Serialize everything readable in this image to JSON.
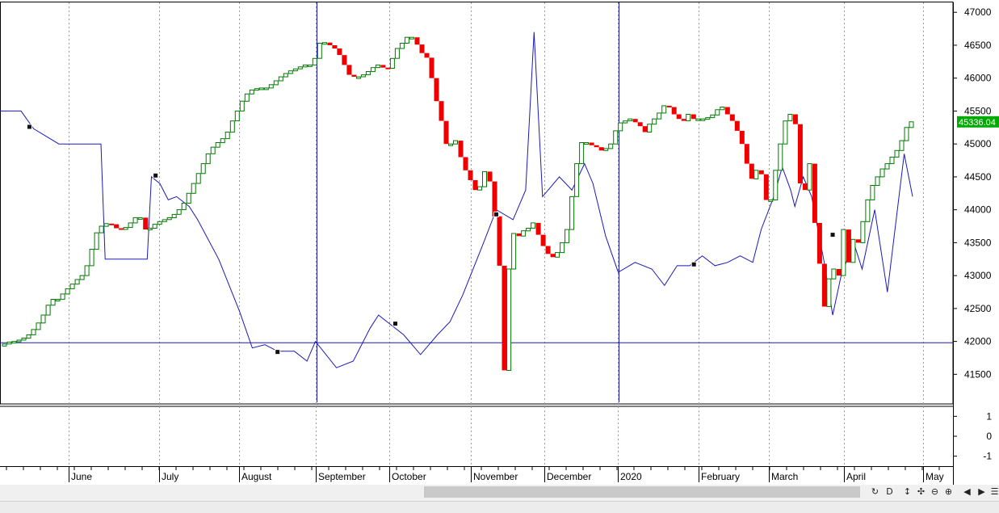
{
  "chart_data": [
    {
      "type": "step-candles-with-line",
      "ylim": [
        41050,
        47150
      ],
      "y_ticks": [
        "47000",
        "46500",
        "46000",
        "45500",
        "45000",
        "44500",
        "44000",
        "43500",
        "43000",
        "42500",
        "42000",
        "41500"
      ],
      "x_labels": [
        "June",
        "July",
        "August",
        "September",
        "October",
        "November",
        "December",
        "2020",
        "February",
        "March",
        "April",
        "May"
      ],
      "last_price_label": "45336.04",
      "horizontal_line_y": 41980,
      "vertical_markers": [
        "September",
        "2020"
      ],
      "grid": "vertical dotted",
      "colors": {
        "up": "#007a00",
        "down": "#ee0000",
        "line": "#1a1ab8",
        "price_tag": "#00aa00"
      },
      "price_steps": [
        [
          0,
          41930
        ],
        [
          1,
          41960
        ],
        [
          2,
          41990
        ],
        [
          3,
          42000
        ],
        [
          4,
          42020
        ],
        [
          5,
          42050
        ],
        [
          6,
          42100
        ],
        [
          7,
          42180
        ],
        [
          8,
          42280
        ],
        [
          9,
          42400
        ],
        [
          10,
          42550
        ],
        [
          11,
          42640
        ],
        [
          12,
          42640
        ],
        [
          13,
          42720
        ],
        [
          14,
          42800
        ],
        [
          15,
          42870
        ],
        [
          16,
          42940
        ],
        [
          17,
          43000
        ],
        [
          18,
          43150
        ],
        [
          19,
          43400
        ],
        [
          20,
          43650
        ],
        [
          21,
          43750
        ],
        [
          22,
          43790
        ],
        [
          23,
          43780
        ],
        [
          24,
          43720
        ],
        [
          25,
          43700
        ],
        [
          26,
          43730
        ],
        [
          27,
          43800
        ],
        [
          28,
          43880
        ],
        [
          29,
          43880
        ],
        [
          30,
          43700
        ],
        [
          31,
          43720
        ],
        [
          32,
          43780
        ],
        [
          33,
          43820
        ],
        [
          34,
          43850
        ],
        [
          35,
          43880
        ],
        [
          36,
          43930
        ],
        [
          37,
          44000
        ],
        [
          38,
          44100
        ],
        [
          39,
          44250
        ],
        [
          40,
          44400
        ],
        [
          41,
          44550
        ],
        [
          42,
          44700
        ],
        [
          43,
          44850
        ],
        [
          44,
          44950
        ],
        [
          45,
          45020
        ],
        [
          46,
          45080
        ],
        [
          47,
          45180
        ],
        [
          48,
          45350
        ],
        [
          49,
          45500
        ],
        [
          50,
          45650
        ],
        [
          51,
          45760
        ],
        [
          52,
          45820
        ],
        [
          53,
          45840
        ],
        [
          54,
          45850
        ],
        [
          55,
          45850
        ],
        [
          56,
          45900
        ],
        [
          57,
          45960
        ],
        [
          58,
          46020
        ],
        [
          59,
          46070
        ],
        [
          60,
          46110
        ],
        [
          61,
          46140
        ],
        [
          62,
          46170
        ],
        [
          63,
          46200
        ],
        [
          64,
          46200
        ],
        [
          65,
          46300
        ],
        [
          66,
          46530
        ],
        [
          67,
          46540
        ],
        [
          68,
          46500
        ],
        [
          69,
          46450
        ],
        [
          70,
          46350
        ],
        [
          71,
          46200
        ],
        [
          72,
          46050
        ],
        [
          73,
          46020
        ],
        [
          74,
          46020
        ],
        [
          75,
          46050
        ],
        [
          76,
          46100
        ],
        [
          77,
          46160
        ],
        [
          78,
          46200
        ],
        [
          79,
          46160
        ],
        [
          80,
          46150
        ],
        [
          81,
          46300
        ],
        [
          82,
          46450
        ],
        [
          83,
          46530
        ],
        [
          84,
          46620
        ],
        [
          85,
          46620
        ],
        [
          86,
          46510
        ],
        [
          87,
          46380
        ],
        [
          88,
          46310
        ],
        [
          89,
          46000
        ],
        [
          90,
          45650
        ],
        [
          91,
          45350
        ],
        [
          92,
          45000
        ],
        [
          93,
          45000
        ],
        [
          94,
          45050
        ],
        [
          95,
          44800
        ],
        [
          96,
          44600
        ],
        [
          97,
          44450
        ],
        [
          98,
          44300
        ],
        [
          99,
          44350
        ],
        [
          100,
          44580
        ],
        [
          101,
          44430
        ],
        [
          102,
          43900
        ],
        [
          103,
          43150
        ],
        [
          104,
          41560
        ],
        [
          105,
          43100
        ],
        [
          106,
          43640
        ],
        [
          107,
          43600
        ],
        [
          108,
          43680
        ],
        [
          109,
          43720
        ],
        [
          110,
          43800
        ],
        [
          111,
          43620
        ],
        [
          112,
          43450
        ],
        [
          113,
          43330
        ],
        [
          114,
          43280
        ],
        [
          115,
          43350
        ],
        [
          116,
          43500
        ],
        [
          117,
          43700
        ],
        [
          118,
          44200
        ],
        [
          119,
          44700
        ],
        [
          120,
          45020
        ],
        [
          121,
          45020
        ],
        [
          122,
          44980
        ],
        [
          123,
          44950
        ],
        [
          124,
          44900
        ],
        [
          125,
          44930
        ],
        [
          126,
          45000
        ],
        [
          127,
          45200
        ],
        [
          128,
          45320
        ],
        [
          129,
          45350
        ],
        [
          130,
          45380
        ],
        [
          131,
          45330
        ],
        [
          132,
          45270
        ],
        [
          133,
          45180
        ],
        [
          134,
          45300
        ],
        [
          135,
          45380
        ],
        [
          136,
          45470
        ],
        [
          137,
          45580
        ],
        [
          138,
          45560
        ],
        [
          139,
          45450
        ],
        [
          140,
          45380
        ],
        [
          141,
          45350
        ],
        [
          142,
          45450
        ],
        [
          143,
          45380
        ],
        [
          144,
          45380
        ],
        [
          145,
          45380
        ],
        [
          146,
          45400
        ],
        [
          147,
          45440
        ],
        [
          148,
          45520
        ],
        [
          149,
          45560
        ],
        [
          150,
          45450
        ],
        [
          151,
          45350
        ],
        [
          152,
          45200
        ],
        [
          153,
          45000
        ],
        [
          154,
          44700
        ],
        [
          155,
          44470
        ],
        [
          156,
          44600
        ],
        [
          157,
          44540
        ],
        [
          158,
          44150
        ],
        [
          159,
          44150
        ],
        [
          160,
          44600
        ],
        [
          161,
          45000
        ],
        [
          162,
          45350
        ],
        [
          163,
          45450
        ],
        [
          164,
          45300
        ],
        [
          165,
          44400
        ],
        [
          166,
          44300
        ],
        [
          167,
          44700
        ],
        [
          168,
          43800
        ],
        [
          169,
          43180
        ],
        [
          170,
          42530
        ],
        [
          171,
          42950
        ],
        [
          172,
          43100
        ],
        [
          173,
          43000
        ],
        [
          174,
          43700
        ],
        [
          175,
          43200
        ],
        [
          176,
          43550
        ],
        [
          177,
          43500
        ],
        [
          178,
          43820
        ],
        [
          179,
          44150
        ],
        [
          180,
          44370
        ],
        [
          181,
          44500
        ],
        [
          182,
          44620
        ],
        [
          183,
          44700
        ],
        [
          184,
          44800
        ],
        [
          185,
          44900
        ],
        [
          186,
          45050
        ],
        [
          187,
          45250
        ],
        [
          188,
          45336
        ]
      ],
      "overlay_line": [
        [
          0,
          45500
        ],
        [
          5,
          45500
        ],
        [
          8,
          45230
        ],
        [
          14,
          45000
        ],
        [
          24,
          45000
        ],
        [
          25,
          43250
        ],
        [
          35,
          43250
        ],
        [
          36,
          44500
        ],
        [
          38,
          44400
        ],
        [
          40,
          44150
        ],
        [
          42,
          44200
        ],
        [
          45,
          44050
        ],
        [
          47,
          43850
        ],
        [
          52,
          43250
        ],
        [
          57,
          42450
        ],
        [
          60,
          41900
        ],
        [
          63,
          41950
        ],
        [
          66,
          41850
        ],
        [
          70,
          41850
        ],
        [
          73,
          41700
        ],
        [
          75,
          42000
        ],
        [
          80,
          41600
        ],
        [
          84,
          41700
        ],
        [
          88,
          42200
        ],
        [
          90,
          42400
        ],
        [
          96,
          42100
        ],
        [
          100,
          41800
        ],
        [
          104,
          42100
        ],
        [
          107,
          42300
        ],
        [
          110,
          42700
        ],
        [
          115,
          43500
        ],
        [
          118,
          44000
        ],
        [
          122,
          43850
        ],
        [
          125,
          44300
        ],
        [
          127,
          46700
        ],
        [
          129,
          44200
        ],
        [
          133,
          44500
        ],
        [
          136,
          44300
        ],
        [
          139,
          44700
        ],
        [
          141,
          44400
        ],
        [
          144,
          43600
        ],
        [
          147,
          43050
        ],
        [
          151,
          43200
        ],
        [
          155,
          43100
        ],
        [
          158,
          42850
        ],
        [
          161,
          43150
        ],
        [
          164,
          43150
        ],
        [
          167,
          43300
        ],
        [
          170,
          43150
        ],
        [
          173,
          43200
        ],
        [
          176,
          43300
        ],
        [
          179,
          43200
        ],
        [
          181,
          43700
        ],
        [
          184,
          44200
        ],
        [
          186,
          44650
        ],
        [
          188,
          44300
        ],
        [
          189,
          44050
        ],
        [
          191,
          44500
        ],
        [
          193,
          44200
        ],
        [
          196,
          43200
        ],
        [
          198,
          42400
        ],
        [
          200,
          43000
        ],
        [
          203,
          43500
        ],
        [
          205,
          43100
        ],
        [
          208,
          44000
        ],
        [
          211,
          42750
        ],
        [
          215,
          44850
        ],
        [
          217,
          44200
        ]
      ],
      "line_markers": [
        [
          7,
          45260
        ],
        [
          37,
          44520
        ],
        [
          66,
          41840
        ],
        [
          94,
          42270
        ],
        [
          118,
          43930
        ],
        [
          165,
          43170
        ],
        [
          198,
          43620
        ]
      ]
    },
    {
      "type": "indicator-pane",
      "ylim": [
        -1.5,
        1.5
      ],
      "y_ticks": [
        "1",
        "0",
        "-1"
      ]
    }
  ],
  "toolbar": {
    "buttons": [
      {
        "name": "refresh-icon",
        "glyph": "↻"
      },
      {
        "name": "period-d-button",
        "glyph": "D"
      },
      {
        "name": "scale-v-icon",
        "glyph": "↕"
      },
      {
        "name": "crosshair-icon",
        "glyph": "✣"
      },
      {
        "name": "zoom-out-icon",
        "glyph": "⊖"
      },
      {
        "name": "zoom-in-icon",
        "glyph": "⊕"
      },
      {
        "name": "scroll-left-icon",
        "glyph": "◀"
      },
      {
        "name": "scroll-right-icon",
        "glyph": "▶"
      },
      {
        "name": "menu-icon",
        "glyph": "☰"
      }
    ]
  }
}
